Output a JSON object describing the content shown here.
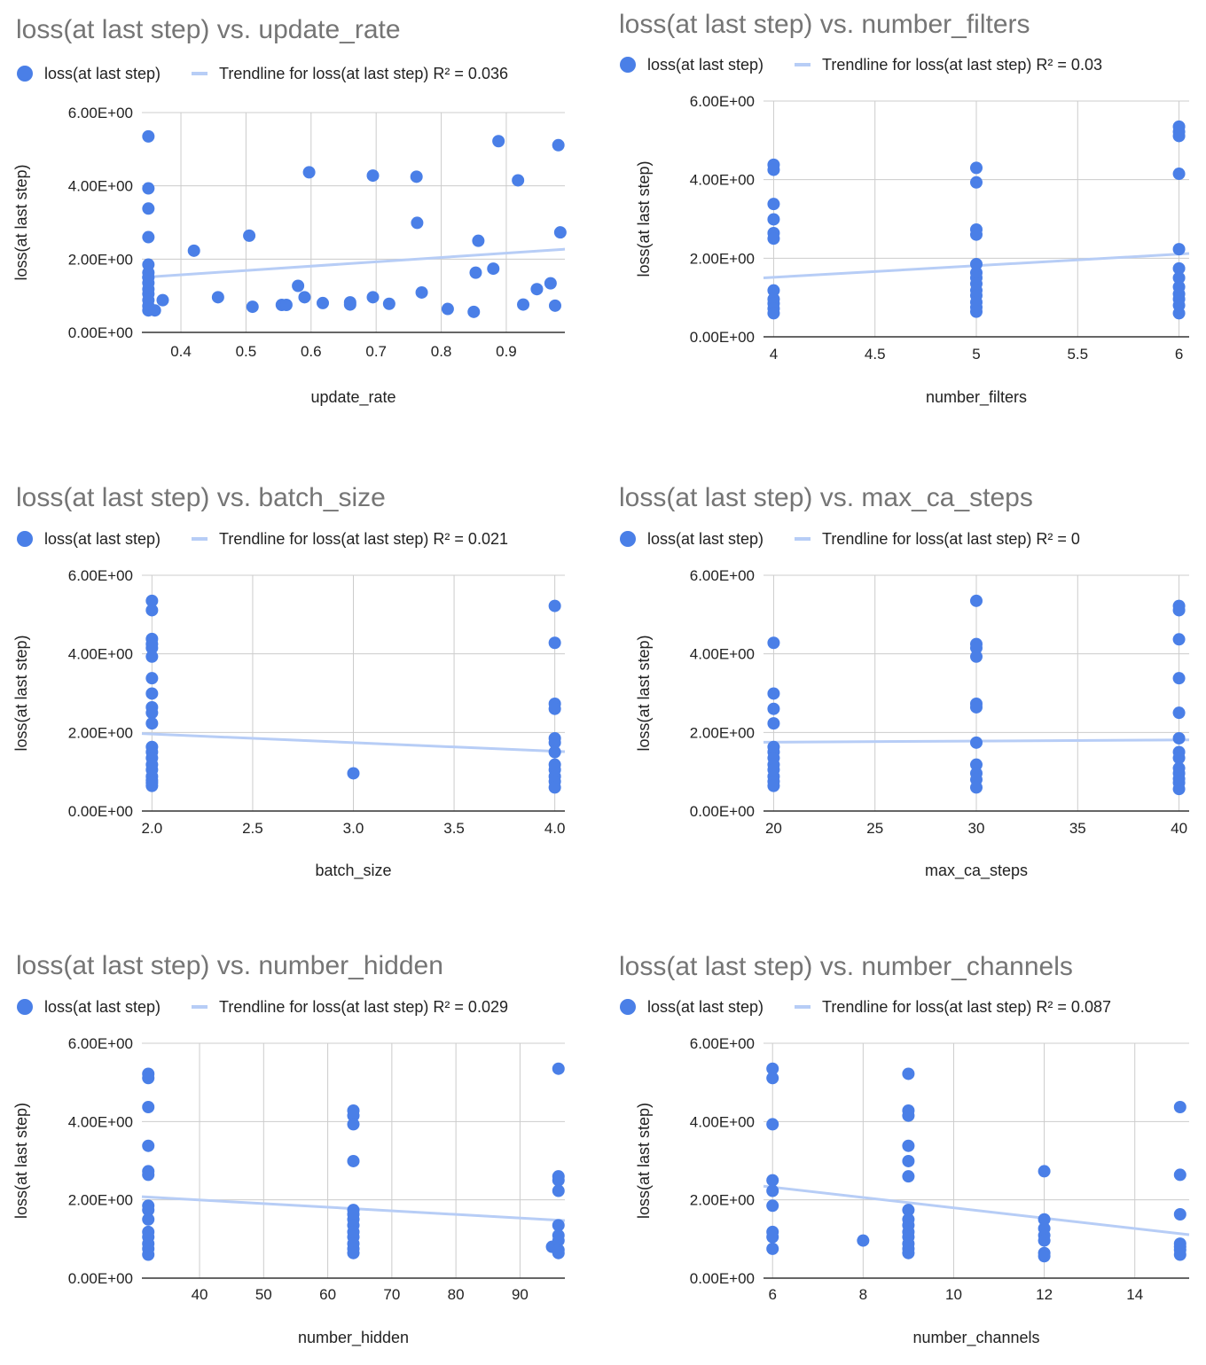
{
  "chart_data": [
    {
      "type": "scatter",
      "title": "loss(at last step) vs. update_rate",
      "xlabel": "update_rate",
      "ylabel": "loss(at last step)",
      "legend": {
        "series_label": "loss(at last step)",
        "trend_label": "Trendline for loss(at last step) R² = 0.036"
      },
      "xlim": [
        0.34,
        0.99
      ],
      "ylim": [
        0,
        6
      ],
      "x_ticks": [
        0.4,
        0.5,
        0.6,
        0.7,
        0.8,
        0.9
      ],
      "x_tick_labels": [
        "0.4",
        "0.5",
        "0.6",
        "0.7",
        "0.8",
        "0.9"
      ],
      "y_ticks": [
        0,
        2,
        4,
        6
      ],
      "y_tick_labels": [
        "0.00E+00",
        "2.00E+00",
        "4.00E+00",
        "6.00E+00"
      ],
      "trendline": {
        "x": [
          0.34,
          0.99
        ],
        "y": [
          1.5,
          2.27
        ]
      },
      "points": [
        [
          0.35,
          5.35
        ],
        [
          0.35,
          3.93
        ],
        [
          0.35,
          3.38
        ],
        [
          0.35,
          2.6
        ],
        [
          0.35,
          1.85
        ],
        [
          0.35,
          1.63
        ],
        [
          0.35,
          1.5
        ],
        [
          0.35,
          1.35
        ],
        [
          0.35,
          1.18
        ],
        [
          0.35,
          1.05
        ],
        [
          0.35,
          0.88
        ],
        [
          0.35,
          0.72
        ],
        [
          0.35,
          0.6
        ],
        [
          0.36,
          0.6
        ],
        [
          0.372,
          0.88
        ],
        [
          0.42,
          2.23
        ],
        [
          0.457,
          0.96
        ],
        [
          0.505,
          2.64
        ],
        [
          0.51,
          0.7
        ],
        [
          0.555,
          0.75
        ],
        [
          0.562,
          0.75
        ],
        [
          0.58,
          1.27
        ],
        [
          0.59,
          0.96
        ],
        [
          0.597,
          4.37
        ],
        [
          0.618,
          0.8
        ],
        [
          0.66,
          0.82
        ],
        [
          0.66,
          0.76
        ],
        [
          0.695,
          4.28
        ],
        [
          0.695,
          0.96
        ],
        [
          0.72,
          0.78
        ],
        [
          0.762,
          4.25
        ],
        [
          0.763,
          2.99
        ],
        [
          0.77,
          1.09
        ],
        [
          0.81,
          0.64
        ],
        [
          0.85,
          0.56
        ],
        [
          0.853,
          1.63
        ],
        [
          0.857,
          2.5
        ],
        [
          0.88,
          1.74
        ],
        [
          0.888,
          5.22
        ],
        [
          0.918,
          4.15
        ],
        [
          0.926,
          0.76
        ],
        [
          0.947,
          1.18
        ],
        [
          0.968,
          1.34
        ],
        [
          0.975,
          0.73
        ],
        [
          0.98,
          5.11
        ],
        [
          0.983,
          2.73
        ]
      ]
    },
    {
      "type": "scatter",
      "title": "loss(at last step) vs. number_filters",
      "xlabel": "number_filters",
      "ylabel": "loss(at last step)",
      "legend": {
        "series_label": "loss(at last step)",
        "trend_label": "Trendline for loss(at last step) R² = 0.03"
      },
      "xlim": [
        3.95,
        6.05
      ],
      "ylim": [
        0,
        6
      ],
      "x_ticks": [
        4,
        4.5,
        5,
        5.5,
        6
      ],
      "x_tick_labels": [
        "4",
        "4.5",
        "5",
        "5.5",
        "6"
      ],
      "y_ticks": [
        0,
        2,
        4,
        6
      ],
      "y_tick_labels": [
        "0.00E+00",
        "2.00E+00",
        "4.00E+00",
        "6.00E+00"
      ],
      "trendline": {
        "x": [
          3.95,
          6.05
        ],
        "y": [
          1.5,
          2.12
        ]
      },
      "points": [
        [
          4,
          4.38
        ],
        [
          4,
          4.25
        ],
        [
          4,
          3.38
        ],
        [
          4,
          2.99
        ],
        [
          4,
          2.64
        ],
        [
          4,
          2.5
        ],
        [
          4,
          1.18
        ],
        [
          4,
          0.96
        ],
        [
          4,
          0.85
        ],
        [
          4,
          0.72
        ],
        [
          4,
          0.6
        ],
        [
          5,
          4.3
        ],
        [
          5,
          3.93
        ],
        [
          5,
          2.73
        ],
        [
          5,
          2.6
        ],
        [
          5,
          1.85
        ],
        [
          5,
          1.63
        ],
        [
          5,
          1.5
        ],
        [
          5,
          1.35
        ],
        [
          5,
          1.18
        ],
        [
          5,
          1.05
        ],
        [
          5,
          0.88
        ],
        [
          5,
          0.75
        ],
        [
          5,
          0.64
        ],
        [
          6,
          5.35
        ],
        [
          6,
          5.22
        ],
        [
          6,
          5.11
        ],
        [
          6,
          4.15
        ],
        [
          6,
          2.23
        ],
        [
          6,
          1.74
        ],
        [
          6,
          1.5
        ],
        [
          6,
          1.27
        ],
        [
          6,
          1.09
        ],
        [
          6,
          0.96
        ],
        [
          6,
          0.8
        ],
        [
          6,
          0.6
        ]
      ]
    },
    {
      "type": "scatter",
      "title": "loss(at last step) vs. batch_size",
      "xlabel": "batch_size",
      "ylabel": "loss(at last step)",
      "legend": {
        "series_label": "loss(at last step)",
        "trend_label": "Trendline for loss(at last step) R² = 0.021"
      },
      "xlim": [
        1.95,
        4.05
      ],
      "ylim": [
        0,
        6
      ],
      "x_ticks": [
        2,
        2.5,
        3,
        3.5,
        4
      ],
      "x_tick_labels": [
        "2.0",
        "2.5",
        "3.0",
        "3.5",
        "4.0"
      ],
      "y_ticks": [
        0,
        2,
        4,
        6
      ],
      "y_tick_labels": [
        "0.00E+00",
        "2.00E+00",
        "4.00E+00",
        "6.00E+00"
      ],
      "trendline": {
        "x": [
          1.95,
          4.05
        ],
        "y": [
          1.97,
          1.51
        ]
      },
      "points": [
        [
          2,
          5.35
        ],
        [
          2,
          5.11
        ],
        [
          2,
          4.38
        ],
        [
          2,
          4.25
        ],
        [
          2,
          4.15
        ],
        [
          2,
          3.93
        ],
        [
          2,
          3.38
        ],
        [
          2,
          2.99
        ],
        [
          2,
          2.64
        ],
        [
          2,
          2.5
        ],
        [
          2,
          2.23
        ],
        [
          2,
          1.63
        ],
        [
          2,
          1.5
        ],
        [
          2,
          1.35
        ],
        [
          2,
          1.18
        ],
        [
          2,
          1.05
        ],
        [
          2,
          0.88
        ],
        [
          2,
          0.78
        ],
        [
          2,
          0.72
        ],
        [
          2,
          0.64
        ],
        [
          3,
          0.96
        ],
        [
          4,
          5.22
        ],
        [
          4,
          4.28
        ],
        [
          4,
          2.73
        ],
        [
          4,
          2.6
        ],
        [
          4,
          1.85
        ],
        [
          4,
          1.74
        ],
        [
          4,
          1.5
        ],
        [
          4,
          1.18
        ],
        [
          4,
          1.05
        ],
        [
          4,
          0.88
        ],
        [
          4,
          0.75
        ],
        [
          4,
          0.6
        ]
      ]
    },
    {
      "type": "scatter",
      "title": "loss(at last step) vs. max_ca_steps",
      "xlabel": "max_ca_steps",
      "ylabel": "loss(at last step)",
      "legend": {
        "series_label": "loss(at last step)",
        "trend_label": "Trendline for loss(at last step) R² = 0"
      },
      "xlim": [
        19.5,
        40.5
      ],
      "ylim": [
        0,
        6
      ],
      "x_ticks": [
        20,
        25,
        30,
        35,
        40
      ],
      "x_tick_labels": [
        "20",
        "25",
        "30",
        "35",
        "40"
      ],
      "y_ticks": [
        0,
        2,
        4,
        6
      ],
      "y_tick_labels": [
        "0.00E+00",
        "2.00E+00",
        "4.00E+00",
        "6.00E+00"
      ],
      "trendline": {
        "x": [
          19.5,
          40.5
        ],
        "y": [
          1.75,
          1.81
        ]
      },
      "points": [
        [
          20,
          4.28
        ],
        [
          20,
          2.99
        ],
        [
          20,
          2.6
        ],
        [
          20,
          2.23
        ],
        [
          20,
          1.63
        ],
        [
          20,
          1.5
        ],
        [
          20,
          1.35
        ],
        [
          20,
          1.18
        ],
        [
          20,
          1.05
        ],
        [
          20,
          0.88
        ],
        [
          20,
          0.75
        ],
        [
          20,
          0.64
        ],
        [
          30,
          5.35
        ],
        [
          30,
          4.25
        ],
        [
          30,
          4.15
        ],
        [
          30,
          3.93
        ],
        [
          30,
          2.73
        ],
        [
          30,
          2.64
        ],
        [
          30,
          1.74
        ],
        [
          30,
          1.18
        ],
        [
          30,
          0.96
        ],
        [
          30,
          0.8
        ],
        [
          30,
          0.6
        ],
        [
          40,
          5.22
        ],
        [
          40,
          5.11
        ],
        [
          40,
          4.37
        ],
        [
          40,
          3.38
        ],
        [
          40,
          2.5
        ],
        [
          40,
          1.85
        ],
        [
          40,
          1.5
        ],
        [
          40,
          1.35
        ],
        [
          40,
          1.09
        ],
        [
          40,
          0.96
        ],
        [
          40,
          0.82
        ],
        [
          40,
          0.72
        ],
        [
          40,
          0.56
        ]
      ]
    },
    {
      "type": "scatter",
      "title": "loss(at last step) vs. number_hidden",
      "xlabel": "number_hidden",
      "ylabel": "loss(at last step)",
      "legend": {
        "series_label": "loss(at last step)",
        "trend_label": "Trendline for loss(at last step) R² = 0.029"
      },
      "xlim": [
        31,
        97
      ],
      "ylim": [
        0,
        6
      ],
      "x_ticks": [
        40,
        50,
        60,
        70,
        80,
        90
      ],
      "x_tick_labels": [
        "40",
        "50",
        "60",
        "70",
        "80",
        "90"
      ],
      "y_ticks": [
        0,
        2,
        4,
        6
      ],
      "y_tick_labels": [
        "0.00E+00",
        "2.00E+00",
        "4.00E+00",
        "6.00E+00"
      ],
      "trendline": {
        "x": [
          31,
          97
        ],
        "y": [
          2.08,
          1.47
        ]
      },
      "points": [
        [
          32,
          5.22
        ],
        [
          32,
          5.11
        ],
        [
          32,
          4.37
        ],
        [
          32,
          3.38
        ],
        [
          32,
          2.73
        ],
        [
          32,
          2.64
        ],
        [
          32,
          1.85
        ],
        [
          32,
          1.74
        ],
        [
          32,
          1.5
        ],
        [
          32,
          1.18
        ],
        [
          32,
          1.05
        ],
        [
          32,
          0.88
        ],
        [
          32,
          0.75
        ],
        [
          32,
          0.6
        ],
        [
          64,
          4.28
        ],
        [
          64,
          4.15
        ],
        [
          64,
          3.93
        ],
        [
          64,
          2.99
        ],
        [
          64,
          1.74
        ],
        [
          64,
          1.63
        ],
        [
          64,
          1.5
        ],
        [
          64,
          1.35
        ],
        [
          64,
          1.18
        ],
        [
          64,
          1.05
        ],
        [
          64,
          0.88
        ],
        [
          64,
          0.75
        ],
        [
          64,
          0.64
        ],
        [
          95,
          0.8
        ],
        [
          96,
          5.35
        ],
        [
          96,
          2.6
        ],
        [
          96,
          2.5
        ],
        [
          96,
          2.23
        ],
        [
          96,
          1.35
        ],
        [
          96,
          1.09
        ],
        [
          96,
          0.96
        ],
        [
          96,
          0.72
        ],
        [
          96,
          0.64
        ]
      ]
    },
    {
      "type": "scatter",
      "title": "loss(at last step) vs. number_channels",
      "xlabel": "number_channels",
      "ylabel": "loss(at last step)",
      "legend": {
        "series_label": "loss(at last step)",
        "trend_label": "Trendline for loss(at last step) R² = 0.087"
      },
      "xlim": [
        5.8,
        15.2
      ],
      "ylim": [
        0,
        6
      ],
      "x_ticks": [
        6,
        8,
        10,
        12,
        14
      ],
      "x_tick_labels": [
        "6",
        "8",
        "10",
        "12",
        "14"
      ],
      "y_ticks": [
        0,
        2,
        4,
        6
      ],
      "y_tick_labels": [
        "0.00E+00",
        "2.00E+00",
        "4.00E+00",
        "6.00E+00"
      ],
      "trendline": {
        "x": [
          5.8,
          15.2
        ],
        "y": [
          2.35,
          1.11
        ]
      },
      "points": [
        [
          6,
          5.35
        ],
        [
          6,
          5.11
        ],
        [
          6,
          3.93
        ],
        [
          6,
          2.5
        ],
        [
          6,
          2.23
        ],
        [
          6,
          1.85
        ],
        [
          6,
          1.18
        ],
        [
          6,
          1.05
        ],
        [
          6,
          0.75
        ],
        [
          8,
          0.96
        ],
        [
          9,
          5.22
        ],
        [
          9,
          4.28
        ],
        [
          9,
          4.15
        ],
        [
          9,
          3.38
        ],
        [
          9,
          2.99
        ],
        [
          9,
          2.6
        ],
        [
          9,
          1.74
        ],
        [
          9,
          1.5
        ],
        [
          9,
          1.35
        ],
        [
          9,
          1.18
        ],
        [
          9,
          1.05
        ],
        [
          9,
          0.88
        ],
        [
          9,
          0.75
        ],
        [
          9,
          0.64
        ],
        [
          12,
          2.73
        ],
        [
          12,
          1.5
        ],
        [
          12,
          1.27
        ],
        [
          12,
          1.09
        ],
        [
          12,
          0.96
        ],
        [
          12,
          0.64
        ],
        [
          12,
          0.56
        ],
        [
          15,
          4.37
        ],
        [
          15,
          2.64
        ],
        [
          15,
          1.63
        ],
        [
          15,
          0.88
        ],
        [
          15,
          0.8
        ],
        [
          15,
          0.72
        ],
        [
          15,
          0.6
        ]
      ]
    }
  ],
  "colors": {
    "point": "#4a7fe7",
    "trendline": "#b7cdf6",
    "title": "#757575"
  }
}
